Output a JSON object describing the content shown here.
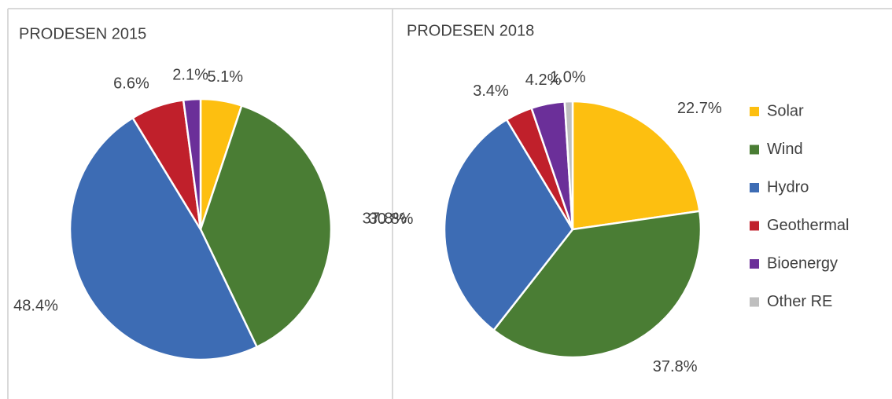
{
  "chart_data": [
    {
      "type": "pie",
      "title": "PRODESEN 2015",
      "categories": [
        "Solar",
        "Wind",
        "Hydro",
        "Geothermal",
        "Bioenergy"
      ],
      "values": [
        5.1,
        37.8,
        48.4,
        6.6,
        2.1
      ],
      "value_labels": [
        "5.1%",
        "37.8%",
        "48.4%",
        "6.6%",
        "2.1%"
      ],
      "colors": [
        "#fdbf10",
        "#4a7d34",
        "#3d6cb4",
        "#c0202b",
        "#6b2f99"
      ]
    },
    {
      "type": "pie",
      "title": "PRODESEN 2018",
      "categories": [
        "Solar",
        "Wind",
        "Hydro",
        "Geothermal",
        "Bioenergy",
        "Other RE"
      ],
      "values": [
        22.7,
        37.8,
        30.8,
        3.4,
        4.2,
        1.0
      ],
      "value_labels": [
        "22.7%",
        "37.8%",
        "30.8%",
        "3.4%",
        "4.2%",
        "1.0%"
      ],
      "colors": [
        "#fdbf10",
        "#4a7d34",
        "#3d6cb4",
        "#c0202b",
        "#6b2f99",
        "#bfbfbf"
      ],
      "legend": "right"
    }
  ]
}
